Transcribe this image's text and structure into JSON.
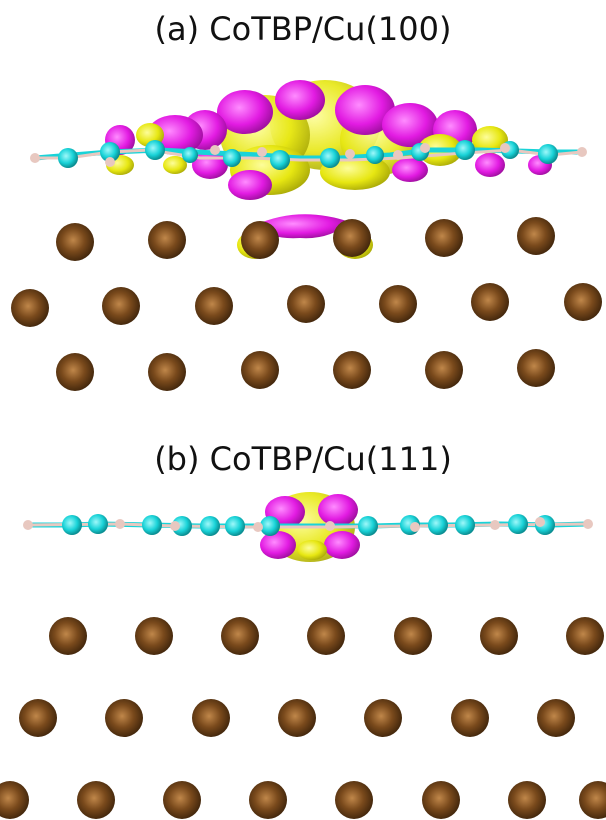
{
  "panels": [
    {
      "label": "(a) CoTBP/Cu(100)"
    },
    {
      "label": "(b) CoTBP/Cu(111)"
    }
  ],
  "colors": {
    "copper": "#7a4a1c",
    "carbon": "#19d3d8",
    "hydrogen": "#e8c8c0",
    "isosurface_positive": "#f3f316",
    "isosurface_negative": "#e21be2"
  }
}
